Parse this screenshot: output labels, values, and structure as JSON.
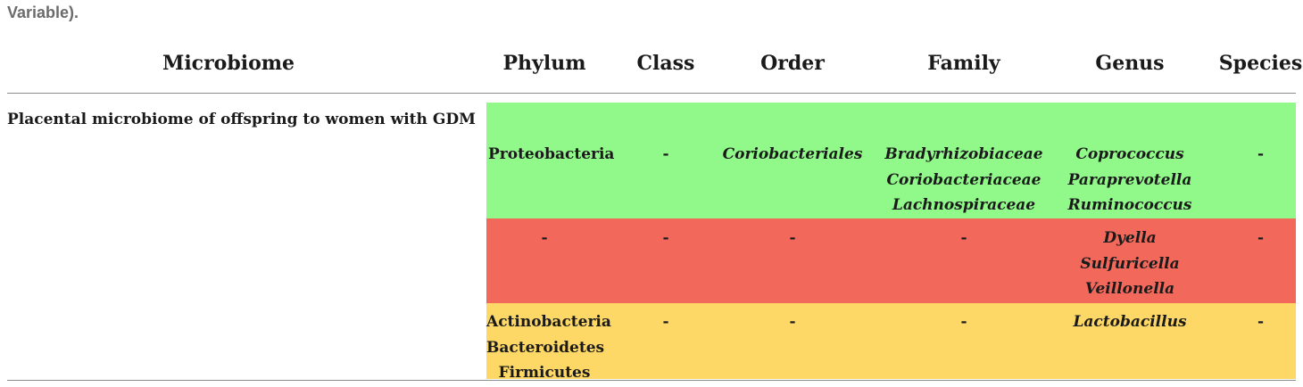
{
  "caption_tail": "Variable).",
  "headers": {
    "microbiome": "Microbiome",
    "phylum": "Phylum",
    "class": "Class",
    "order": "Order",
    "family": "Family",
    "genus": "Genus",
    "species": "Species"
  },
  "row_label": "Placental microbiome of offspring to women with GDM",
  "colors": {
    "green_band": "#90f989",
    "red_band": "#f2695c",
    "yellow_band": "#fdd866"
  },
  "bands": {
    "green": {
      "phylum": [
        "Proteobacteria"
      ],
      "class": "-",
      "order": [
        "Coriobacteriales"
      ],
      "family": [
        "Bradyrhizobiaceae",
        "Coriobacteriaceae",
        "Lachnospiraceae"
      ],
      "genus": [
        "Coprococcus",
        "Paraprevotella",
        "Ruminococcus"
      ],
      "species": "-"
    },
    "red": {
      "phylum": "-",
      "class": "-",
      "order": "-",
      "family": "-",
      "genus": [
        "Dyella",
        "Sulfuricella",
        "Veillonella"
      ],
      "species": "-"
    },
    "yellow": {
      "phylum": [
        "Actinobacteria",
        "Bacteroidetes",
        "Firmicutes"
      ],
      "class": "-",
      "order": "-",
      "family": "-",
      "genus": [
        "Lactobacillus"
      ],
      "species": "-"
    }
  }
}
